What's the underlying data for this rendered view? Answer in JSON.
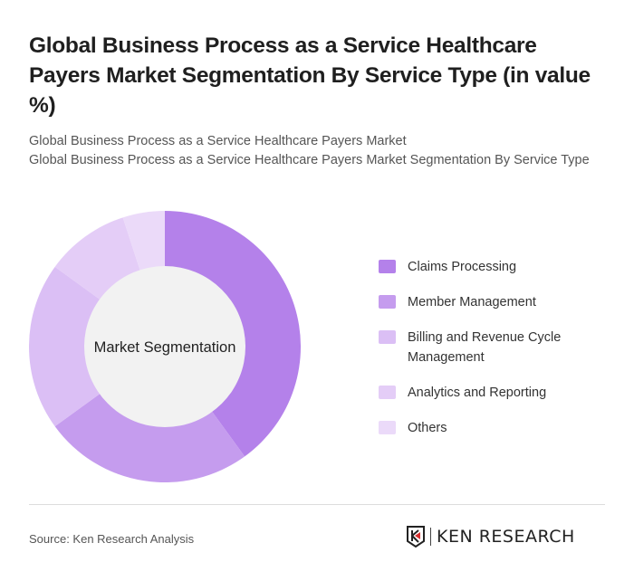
{
  "title": "Global Business Process as a Service Healthcare Payers Market Segmentation By Service Type (in value %)",
  "subtitle1": "Global Business Process as a Service Healthcare Payers Market",
  "subtitle2": "Global Business Process as a Service Healthcare Payers Market Segmentation By Service Type",
  "source": "Source: Ken Research Analysis",
  "logo_text": "KEN RESEARCH",
  "chart_data": {
    "type": "pie",
    "variant": "donut",
    "center_label": "Market Segmentation",
    "legend_position": "right",
    "categories": [
      "Claims Processing",
      "Member Management",
      "Billing and Revenue Cycle Management",
      "Analytics and Reporting",
      "Others"
    ],
    "values": [
      40,
      25,
      20,
      10,
      5
    ],
    "colors": [
      "#b481ea",
      "#c59cee",
      "#dbbff5",
      "#e4cdf7",
      "#ebdaf9"
    ]
  }
}
